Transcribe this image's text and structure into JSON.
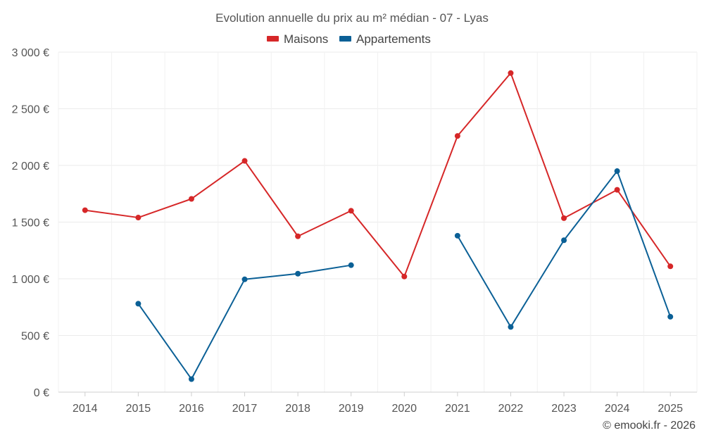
{
  "chart_data": {
    "type": "line",
    "title": "Evolution annuelle du prix au m² médian - 07 - Lyas",
    "categories": [
      "2014",
      "2015",
      "2016",
      "2017",
      "2018",
      "2019",
      "2020",
      "2021",
      "2022",
      "2023",
      "2024",
      "2025"
    ],
    "y_ticks": [
      "0 €",
      "500 €",
      "1 000 €",
      "1 500 €",
      "2 000 €",
      "2 500 €",
      "3 000 €"
    ],
    "ylim": [
      0,
      3000
    ],
    "grid": true,
    "legend_position": "top-center",
    "series": [
      {
        "name": "Maisons",
        "color": "#d62728",
        "values": [
          1605,
          1540,
          1705,
          2040,
          1375,
          1600,
          1020,
          2260,
          2815,
          1535,
          1785,
          1110
        ]
      },
      {
        "name": "Appartements",
        "color": "#0b6096",
        "values": [
          null,
          780,
          115,
          995,
          1045,
          1120,
          null,
          1380,
          575,
          1340,
          1950,
          665
        ]
      }
    ]
  },
  "credit": "© emooki.fr - 2026"
}
